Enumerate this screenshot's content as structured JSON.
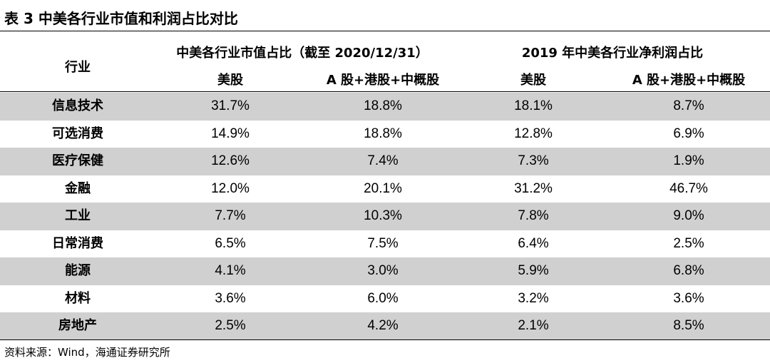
{
  "title": "表 3 中美各行业市值和利润占比对比",
  "header": {
    "industry": "行业",
    "group_mcap": "中美各行业市值占比（截至 2020/12/31）",
    "group_profit": "2019 年中美各行业净利润占比",
    "sub_us": "美股",
    "sub_cn": "A 股+港股+中概股"
  },
  "rows": [
    {
      "name": "信息技术",
      "us_mcap": "31.7%",
      "cn_mcap": "18.8%",
      "us_profit": "18.1%",
      "cn_profit": "8.7%"
    },
    {
      "name": "可选消费",
      "us_mcap": "14.9%",
      "cn_mcap": "18.8%",
      "us_profit": "12.8%",
      "cn_profit": "6.9%"
    },
    {
      "name": "医疗保健",
      "us_mcap": "12.6%",
      "cn_mcap": "7.4%",
      "us_profit": "7.3%",
      "cn_profit": "1.9%"
    },
    {
      "name": "金融",
      "us_mcap": "12.0%",
      "cn_mcap": "20.1%",
      "us_profit": "31.2%",
      "cn_profit": "46.7%"
    },
    {
      "name": "工业",
      "us_mcap": "7.7%",
      "cn_mcap": "10.3%",
      "us_profit": "7.8%",
      "cn_profit": "9.0%"
    },
    {
      "name": "日常消费",
      "us_mcap": "6.5%",
      "cn_mcap": "7.5%",
      "us_profit": "6.4%",
      "cn_profit": "2.5%"
    },
    {
      "name": "能源",
      "us_mcap": "4.1%",
      "cn_mcap": "3.0%",
      "us_profit": "5.9%",
      "cn_profit": "6.8%"
    },
    {
      "name": "材料",
      "us_mcap": "3.6%",
      "cn_mcap": "6.0%",
      "us_profit": "3.2%",
      "cn_profit": "3.6%"
    },
    {
      "name": "房地产",
      "us_mcap": "2.5%",
      "cn_mcap": "4.2%",
      "us_profit": "2.1%",
      "cn_profit": "8.5%"
    }
  ],
  "source": "资料来源：Wind，海通证券研究所",
  "colors": {
    "shade": "#d0d0d0",
    "rule": "#000000"
  }
}
